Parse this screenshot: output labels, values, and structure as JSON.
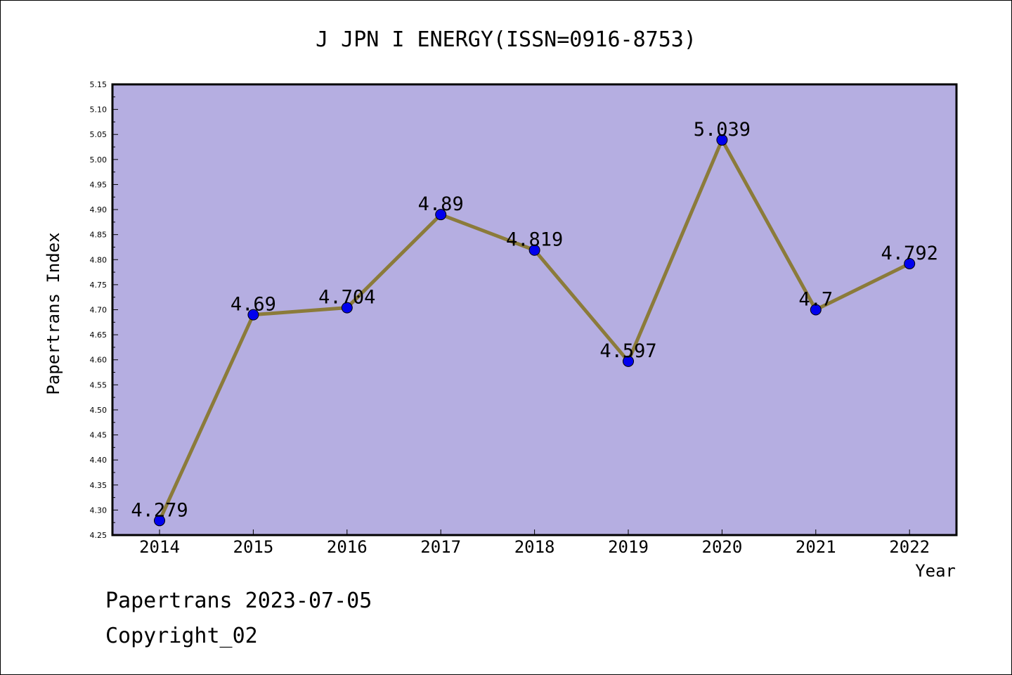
{
  "footer": {
    "line1": "Papertrans 2023-07-05",
    "line2": "Copyright_02"
  },
  "colors": {
    "plot_background": "#b5aee1",
    "line": "#8b7b3a",
    "marker": "#0000ee",
    "axis": "#000000"
  },
  "chart_data": {
    "type": "line",
    "title": "J JPN I ENERGY(ISSN=0916-8753)",
    "xlabel": "Year",
    "ylabel": "Papertrans Index",
    "categories": [
      "2014",
      "2015",
      "2016",
      "2017",
      "2018",
      "2019",
      "2020",
      "2021",
      "2022"
    ],
    "series": [
      {
        "values": [
          4.279,
          4.69,
          4.704,
          4.89,
          4.819,
          4.597,
          5.039,
          4.7,
          4.792
        ],
        "labels": [
          "4.279",
          "4.69",
          "4.704",
          "4.89",
          "4.819",
          "4.597",
          "5.039",
          "4.7",
          "4.792"
        ]
      }
    ],
    "ylim": [
      4.25,
      5.15
    ],
    "yticks": [
      "4.25",
      "4.30",
      "4.35",
      "4.40",
      "4.45",
      "4.50",
      "4.55",
      "4.60",
      "4.65",
      "4.70",
      "4.75",
      "4.80",
      "4.85",
      "4.90",
      "4.95",
      "5.00",
      "5.05",
      "5.10",
      "5.15"
    ],
    "grid": false,
    "legend": "none"
  }
}
